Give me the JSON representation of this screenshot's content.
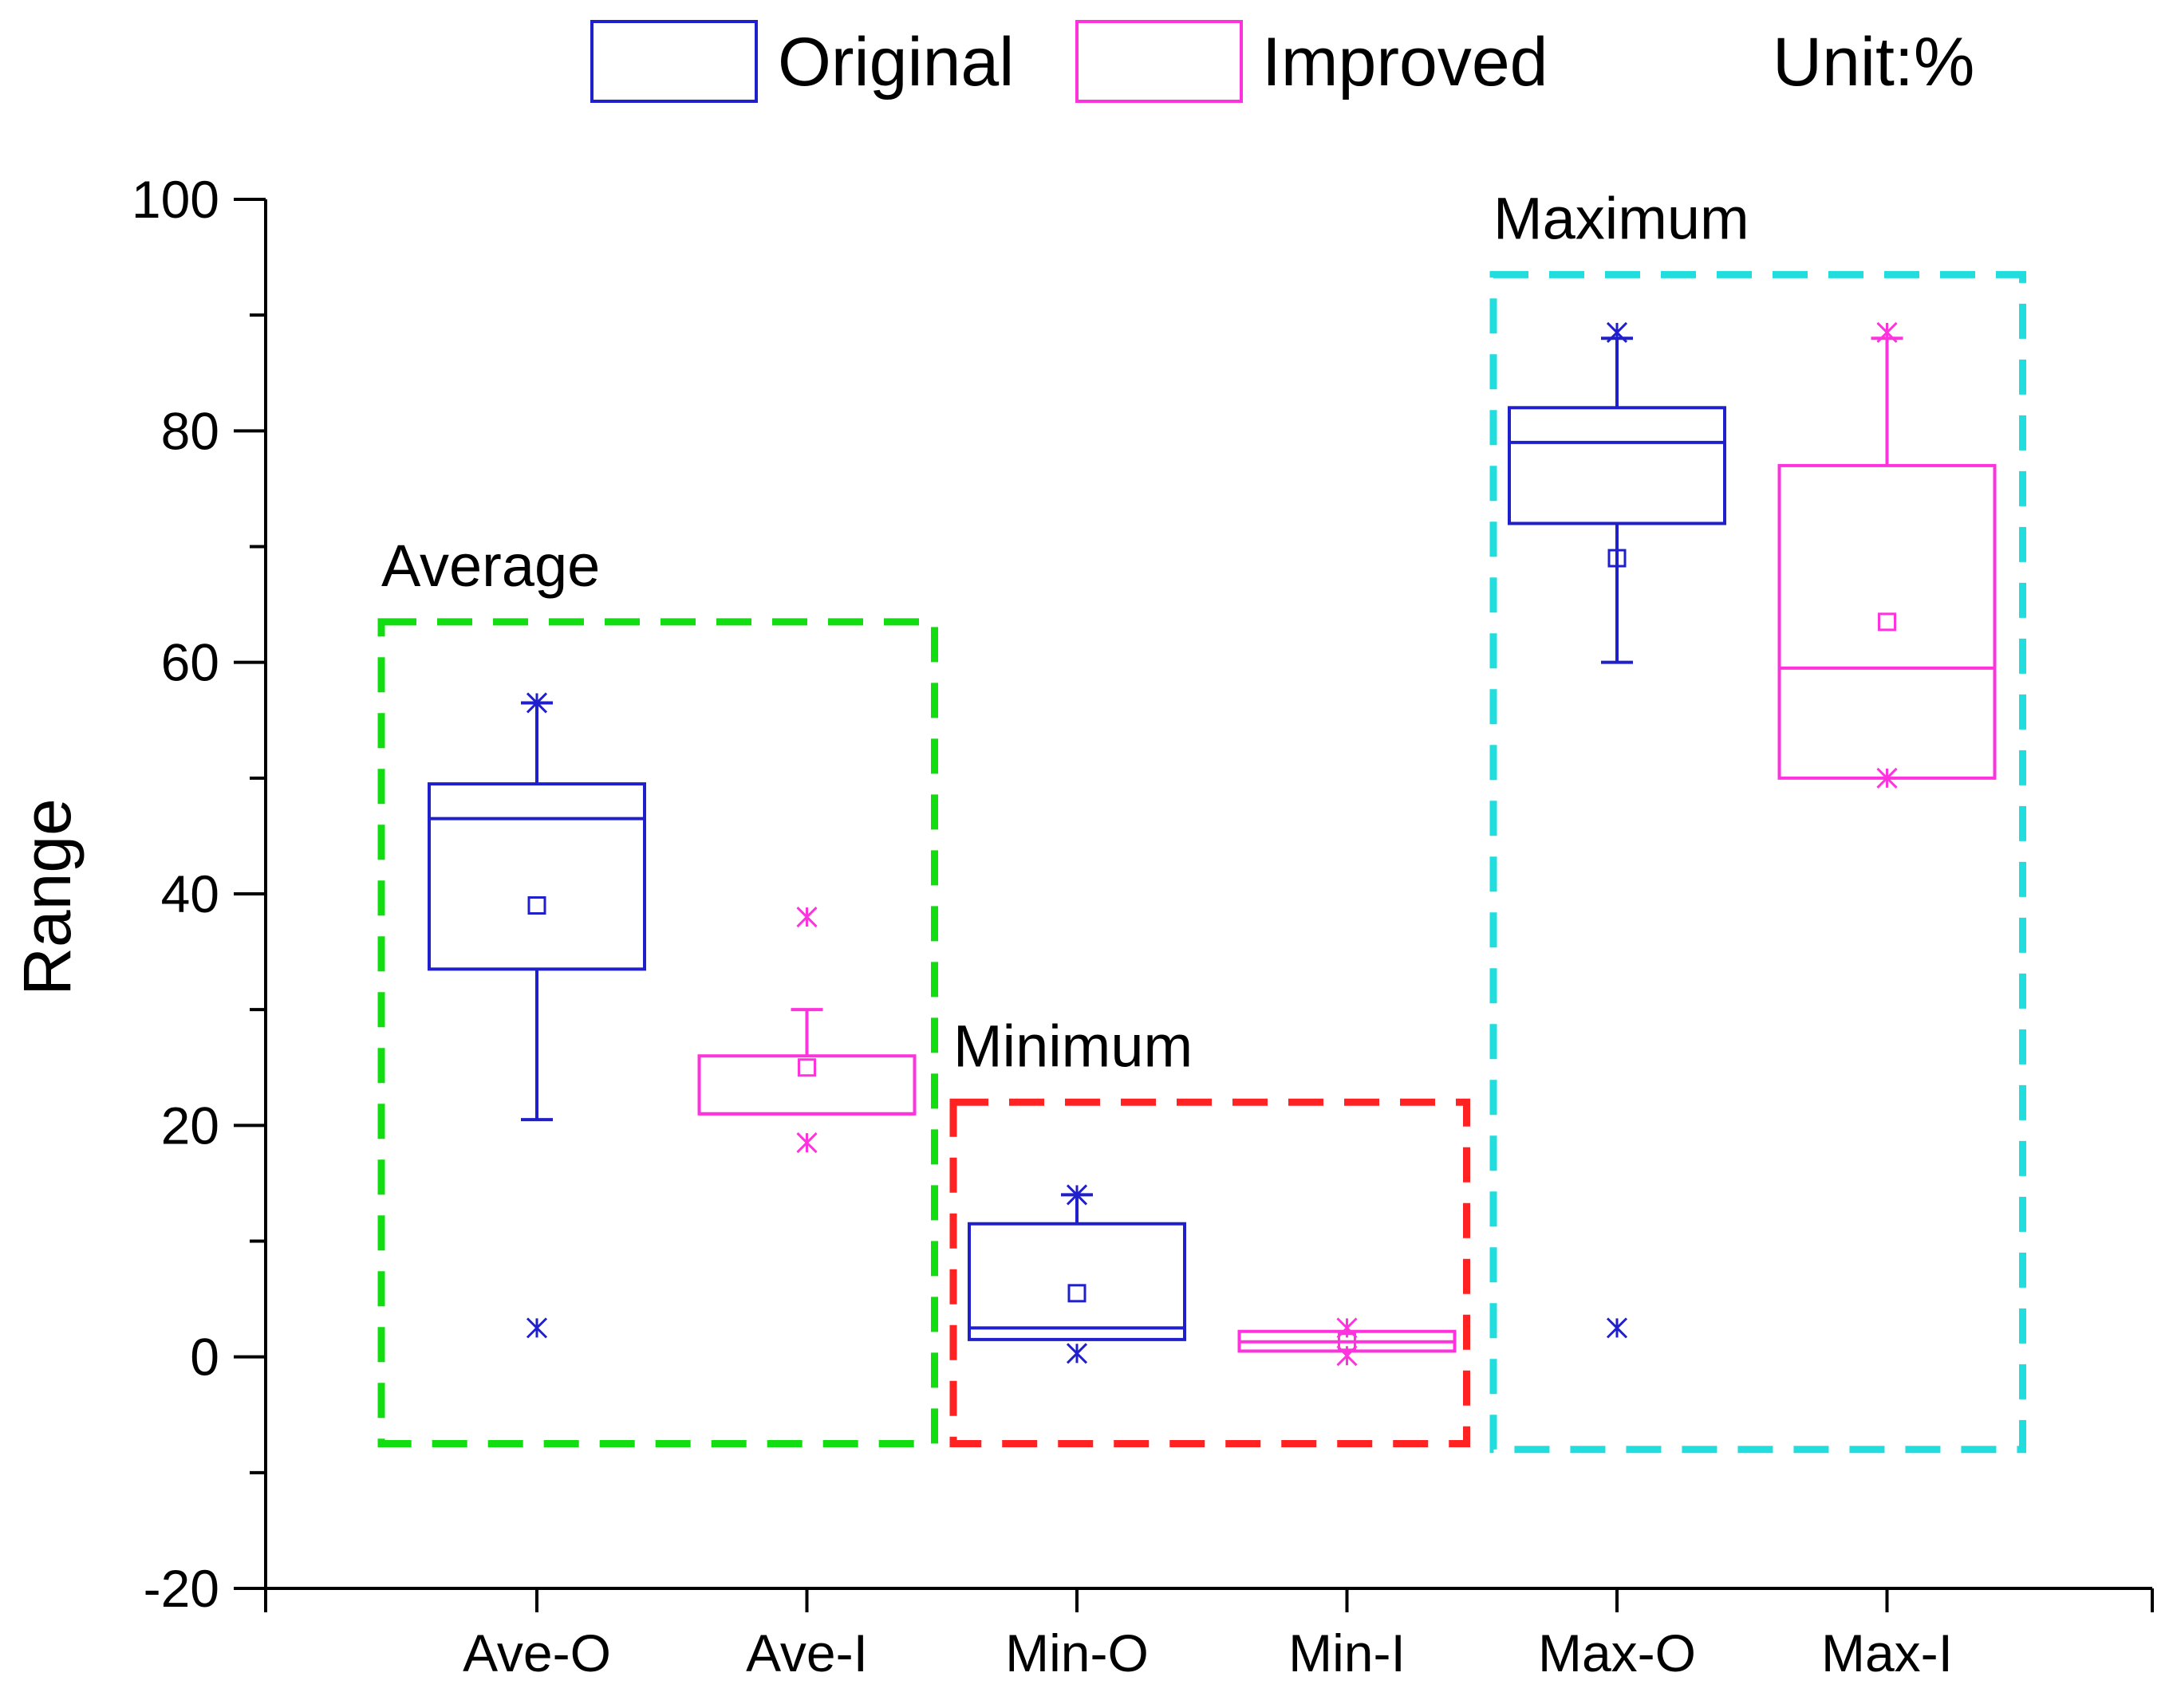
{
  "chart_data": {
    "type": "box",
    "ylabel": "Range",
    "xlabel": "",
    "ylim": [
      -20,
      100
    ],
    "yticks": [
      -20,
      0,
      20,
      40,
      60,
      80,
      100
    ],
    "unit_label": "Unit:%",
    "categories": [
      "Ave-O",
      "Ave-I",
      "Min-O",
      "Min-I",
      "Max-O",
      "Max-I"
    ],
    "legend": [
      {
        "name": "Original",
        "color": "#1f1fcc"
      },
      {
        "name": "Improved",
        "color": "#ff33dd"
      }
    ],
    "boxes": [
      {
        "category": "Ave-O",
        "series": "Original",
        "whisker_low": 20.5,
        "q1": 33.5,
        "median": 46.5,
        "q3": 49.5,
        "whisker_high": 56.5,
        "mean": 39,
        "markers": [
          56.5,
          2.5
        ]
      },
      {
        "category": "Ave-I",
        "series": "Improved",
        "whisker_low": 21,
        "q1": 21,
        "median": 21,
        "q3": 26,
        "whisker_high": 30,
        "mean": 25,
        "markers": [
          38,
          18.5
        ]
      },
      {
        "category": "Min-O",
        "series": "Original",
        "whisker_low": 1.5,
        "q1": 1.5,
        "median": 2.5,
        "q3": 11.5,
        "whisker_high": 14,
        "mean": 5.5,
        "markers": [
          14,
          0.3
        ]
      },
      {
        "category": "Min-I",
        "series": "Improved",
        "whisker_low": 0.5,
        "q1": 0.5,
        "median": 1.3,
        "q3": 2.2,
        "whisker_high": 2.2,
        "mean": 1.3,
        "markers": [
          2.5,
          0.1
        ]
      },
      {
        "category": "Max-O",
        "series": "Original",
        "whisker_low": 60,
        "q1": 72,
        "median": 79,
        "q3": 82,
        "whisker_high": 88,
        "mean": 69,
        "markers": [
          88.5,
          2.5
        ]
      },
      {
        "category": "Max-I",
        "series": "Improved",
        "whisker_low": 50,
        "q1": 50,
        "median": 59.5,
        "q3": 77,
        "whisker_high": 88,
        "mean": 63.5,
        "markers": [
          88.5,
          50
        ]
      }
    ],
    "regions": [
      {
        "label": "Average",
        "color": "#11dd11",
        "from_category": 0,
        "to_category": 1,
        "y_range": [
          -7.5,
          63.5
        ]
      },
      {
        "label": "Minimum",
        "color": "#ff2222",
        "from_category": 2,
        "to_category": 3,
        "y_range": [
          -7.5,
          22
        ]
      },
      {
        "label": "Maximum",
        "color": "#22dddd",
        "from_category": 4,
        "to_category": 5,
        "y_range": [
          -8,
          93.5
        ]
      }
    ]
  }
}
